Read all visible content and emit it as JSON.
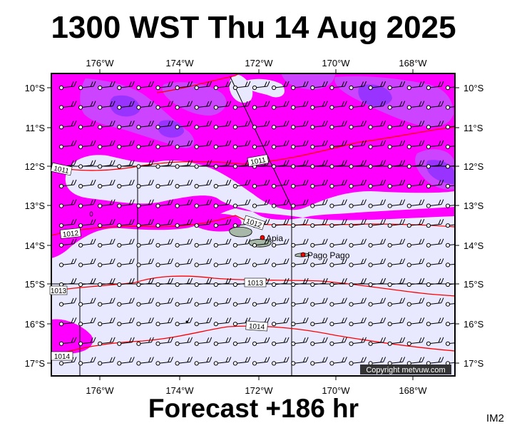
{
  "header": {
    "title": "1300 WST Thu 14 Aug 2025"
  },
  "footer": {
    "forecast": "Forecast +186 hr",
    "image_id": "IM2"
  },
  "map": {
    "lon_labels": [
      "176°W",
      "174°W",
      "172°W",
      "170°W",
      "168°W"
    ],
    "lat_labels": [
      "10°S",
      "11°S",
      "12°S",
      "13°S",
      "14°S",
      "15°S",
      "16°S",
      "17°S"
    ],
    "places": [
      {
        "name": "Apia"
      },
      {
        "name": "Pago Pago"
      }
    ],
    "isobar_labels": [
      "1011",
      "1011",
      "1012",
      "1012",
      "1013",
      "1013",
      "1014",
      "1014"
    ],
    "copyright": "Copyright metvuw.com",
    "colors": {
      "magenta": "#ff00ff",
      "violet": "#cc44ff",
      "purple": "#9933ff",
      "pale": "#e8e8ff",
      "isobar": "#ff0000",
      "land": "#a8b8a8"
    }
  }
}
